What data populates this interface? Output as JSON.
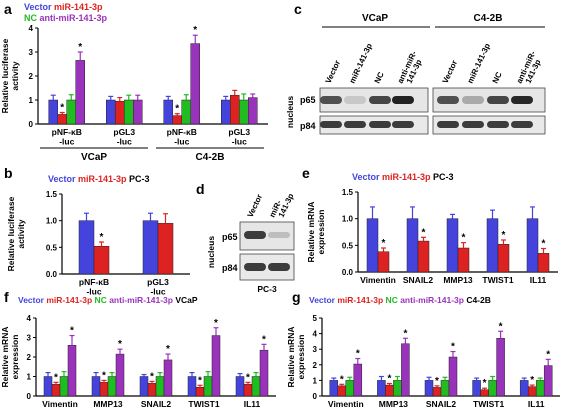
{
  "colors": {
    "vector": "#4444dd",
    "mir": "#dd2222",
    "nc": "#22bb22",
    "anti": "#9933bb",
    "text": "#000000"
  },
  "panels": {
    "a": {
      "letter": "a",
      "legend": [
        "Vector",
        "miR-141-3p",
        "NC",
        "anti-miR-141-3p"
      ],
      "ylabel": [
        "Relative luciferase",
        "activity"
      ],
      "ylim": [
        0,
        4
      ],
      "yticks": [
        "0",
        "1",
        "2",
        "3",
        "4"
      ],
      "groups": [
        {
          "label": [
            "pNF-κB",
            "-luc"
          ],
          "values": [
            1.0,
            0.4,
            1.0,
            2.65
          ],
          "errors": [
            0.2,
            0.08,
            0.22,
            0.35
          ],
          "stars": [
            false,
            true,
            false,
            true
          ]
        },
        {
          "label": [
            "pGL3",
            "-luc"
          ],
          "values": [
            1.0,
            0.95,
            1.0,
            1.0
          ],
          "errors": [
            0.15,
            0.15,
            0.2,
            0.2
          ],
          "stars": [
            false,
            false,
            false,
            false
          ]
        },
        {
          "label": [
            "pNF-κB",
            "-luc"
          ],
          "values": [
            1.0,
            0.35,
            1.0,
            3.35
          ],
          "errors": [
            0.15,
            0.08,
            0.22,
            0.35
          ],
          "stars": [
            false,
            true,
            false,
            true
          ]
        },
        {
          "label": [
            "pGL3",
            "-luc"
          ],
          "values": [
            1.0,
            1.2,
            1.0,
            1.1
          ],
          "errors": [
            0.15,
            0.2,
            0.25,
            0.15
          ],
          "stars": [
            false,
            false,
            false,
            false
          ]
        }
      ],
      "cell_labels": [
        "VCaP",
        "C4-2B"
      ]
    },
    "b": {
      "letter": "b",
      "legend": [
        "Vector",
        "miR-141-3p"
      ],
      "cell_line": "PC-3",
      "ylabel": [
        "Relative luciferase",
        "activity"
      ],
      "ylim": [
        0,
        1.5
      ],
      "yticks": [
        "0.0",
        "0.5",
        "1.0",
        "1.5"
      ],
      "groups": [
        {
          "label": [
            "pNF-κB",
            "-luc"
          ],
          "values": [
            1.0,
            0.52
          ],
          "errors": [
            0.14,
            0.08
          ],
          "stars": [
            false,
            true
          ]
        },
        {
          "label": [
            "pGL3",
            "-luc"
          ],
          "values": [
            1.0,
            0.95
          ],
          "errors": [
            0.14,
            0.18
          ],
          "stars": [
            false,
            false
          ]
        }
      ]
    },
    "c": {
      "letter": "c",
      "cell_lines": [
        "VCaP",
        "C4-2B"
      ],
      "lanes": [
        [
          "Vector"
        ],
        [
          "miR-141-3p"
        ],
        [
          "NC"
        ],
        [
          "anti-miR-",
          "141-3p"
        ]
      ],
      "rows": [
        "p65",
        "p84"
      ],
      "side_label": "nucleus"
    },
    "d": {
      "letter": "d",
      "lanes": [
        [
          "Vector"
        ],
        [
          "miR-",
          "141-3p"
        ]
      ],
      "rows": [
        "p65",
        "p84"
      ],
      "side_label": "nucleus",
      "cell_line": "PC-3"
    },
    "e": {
      "letter": "e",
      "legend": [
        "Vector",
        "miR-141-3p"
      ],
      "cell_line": "PC-3",
      "ylabel": [
        "Relative mRNA",
        "expression"
      ],
      "ylim": [
        0,
        1.5
      ],
      "yticks": [
        "0.0",
        "0.5",
        "1.0",
        "1.5"
      ],
      "groups": [
        {
          "label": "Vimentin",
          "values": [
            1.0,
            0.38
          ],
          "errors": [
            0.22,
            0.07
          ],
          "stars": [
            false,
            true
          ]
        },
        {
          "label": "SNAIL2",
          "values": [
            1.0,
            0.58
          ],
          "errors": [
            0.22,
            0.07
          ],
          "stars": [
            false,
            true
          ]
        },
        {
          "label": "MMP13",
          "values": [
            1.0,
            0.45
          ],
          "errors": [
            0.08,
            0.1
          ],
          "stars": [
            false,
            true
          ]
        },
        {
          "label": "TWIST1",
          "values": [
            1.0,
            0.52
          ],
          "errors": [
            0.16,
            0.08
          ],
          "stars": [
            false,
            true
          ]
        },
        {
          "label": "IL11",
          "values": [
            1.0,
            0.35
          ],
          "errors": [
            0.22,
            0.09
          ],
          "stars": [
            false,
            true
          ]
        }
      ]
    },
    "f": {
      "letter": "f",
      "legend": [
        "Vector",
        "miR-141-3p",
        "NC",
        "anti-miR-141-3p"
      ],
      "cell_line": "VCaP",
      "ylabel": [
        "Relative mRNA",
        "expression"
      ],
      "ylim": [
        0,
        4
      ],
      "yticks": [
        "0",
        "1",
        "2",
        "3",
        "4"
      ],
      "groups": [
        {
          "label": "Vimentin",
          "values": [
            1.0,
            0.6,
            1.0,
            2.6
          ],
          "errors": [
            0.2,
            0.1,
            0.25,
            0.5
          ],
          "stars": [
            false,
            true,
            false,
            true
          ]
        },
        {
          "label": "MMP13",
          "values": [
            1.0,
            0.7,
            1.0,
            2.15
          ],
          "errors": [
            0.2,
            0.1,
            0.2,
            0.25
          ],
          "stars": [
            false,
            true,
            false,
            true
          ]
        },
        {
          "label": "SNAIL2",
          "values": [
            1.0,
            0.65,
            1.0,
            1.85
          ],
          "errors": [
            0.1,
            0.1,
            0.2,
            0.3
          ],
          "stars": [
            false,
            true,
            false,
            true
          ]
        },
        {
          "label": "TWIST1",
          "values": [
            1.0,
            0.45,
            1.0,
            3.1
          ],
          "errors": [
            0.2,
            0.1,
            0.25,
            0.4
          ],
          "stars": [
            false,
            true,
            false,
            true
          ]
        },
        {
          "label": "IL11",
          "values": [
            1.0,
            0.6,
            1.0,
            2.35
          ],
          "errors": [
            0.15,
            0.1,
            0.2,
            0.3
          ],
          "stars": [
            false,
            true,
            false,
            true
          ]
        }
      ]
    },
    "g": {
      "letter": "g",
      "legend": [
        "Vector",
        "miR-141-3p",
        "NC",
        "anti-miR-141-3p"
      ],
      "cell_line": "C4-2B",
      "ylabel": [
        "Relative mRNA",
        "expression"
      ],
      "ylim": [
        0,
        5
      ],
      "yticks": [
        "0",
        "1",
        "2",
        "3",
        "4",
        "5"
      ],
      "groups": [
        {
          "label": "Vimentin",
          "values": [
            1.0,
            0.65,
            1.0,
            2.05
          ],
          "errors": [
            0.15,
            0.1,
            0.2,
            0.35
          ],
          "stars": [
            false,
            true,
            false,
            true
          ]
        },
        {
          "label": "MMP13",
          "values": [
            1.0,
            0.7,
            1.0,
            3.35
          ],
          "errors": [
            0.25,
            0.1,
            0.25,
            0.35
          ],
          "stars": [
            false,
            true,
            false,
            true
          ]
        },
        {
          "label": "SNAIL2",
          "values": [
            1.0,
            0.55,
            1.0,
            2.5
          ],
          "errors": [
            0.2,
            0.1,
            0.2,
            0.35
          ],
          "stars": [
            false,
            true,
            false,
            true
          ]
        },
        {
          "label": "TWIST1",
          "values": [
            1.0,
            0.4,
            1.0,
            3.7
          ],
          "errors": [
            0.15,
            0.1,
            0.25,
            0.45
          ],
          "stars": [
            false,
            true,
            false,
            true
          ]
        },
        {
          "label": "IL11",
          "values": [
            1.0,
            0.6,
            1.0,
            1.95
          ],
          "errors": [
            0.15,
            0.1,
            0.15,
            0.4
          ],
          "stars": [
            false,
            true,
            false,
            true
          ]
        }
      ]
    }
  },
  "chart_data": [
    {
      "panel": "a",
      "type": "bar",
      "ylabel": "Relative luciferase activity",
      "ylim": [
        0,
        4
      ],
      "categories": [
        "VCaP pNF-κB-luc",
        "VCaP pGL3-luc",
        "C4-2B pNF-κB-luc",
        "C4-2B pGL3-luc"
      ],
      "series": [
        {
          "name": "Vector",
          "values": [
            1.0,
            1.0,
            1.0,
            1.0
          ]
        },
        {
          "name": "miR-141-3p",
          "values": [
            0.4,
            0.95,
            0.35,
            1.2
          ]
        },
        {
          "name": "NC",
          "values": [
            1.0,
            1.0,
            1.0,
            1.0
          ]
        },
        {
          "name": "anti-miR-141-3p",
          "values": [
            2.65,
            1.0,
            3.35,
            1.1
          ]
        }
      ]
    },
    {
      "panel": "b",
      "type": "bar",
      "ylabel": "Relative luciferase activity",
      "ylim": [
        0,
        1.5
      ],
      "categories": [
        "pNF-κB-luc",
        "pGL3-luc"
      ],
      "series": [
        {
          "name": "Vector",
          "values": [
            1.0,
            1.0
          ]
        },
        {
          "name": "miR-141-3p",
          "values": [
            0.52,
            0.95
          ]
        }
      ]
    },
    {
      "panel": "e",
      "type": "bar",
      "ylabel": "Relative mRNA expression",
      "ylim": [
        0,
        1.5
      ],
      "categories": [
        "Vimentin",
        "SNAIL2",
        "MMP13",
        "TWIST1",
        "IL11"
      ],
      "series": [
        {
          "name": "Vector",
          "values": [
            1.0,
            1.0,
            1.0,
            1.0,
            1.0
          ]
        },
        {
          "name": "miR-141-3p",
          "values": [
            0.38,
            0.58,
            0.45,
            0.52,
            0.35
          ]
        }
      ]
    },
    {
      "panel": "f",
      "type": "bar",
      "ylabel": "Relative mRNA expression",
      "ylim": [
        0,
        4
      ],
      "categories": [
        "Vimentin",
        "MMP13",
        "SNAIL2",
        "TWIST1",
        "IL11"
      ],
      "series": [
        {
          "name": "Vector",
          "values": [
            1.0,
            1.0,
            1.0,
            1.0,
            1.0
          ]
        },
        {
          "name": "miR-141-3p",
          "values": [
            0.6,
            0.7,
            0.65,
            0.45,
            0.6
          ]
        },
        {
          "name": "NC",
          "values": [
            1.0,
            1.0,
            1.0,
            1.0,
            1.0
          ]
        },
        {
          "name": "anti-miR-141-3p",
          "values": [
            2.6,
            2.15,
            1.85,
            3.1,
            2.35
          ]
        }
      ]
    },
    {
      "panel": "g",
      "type": "bar",
      "ylabel": "Relative mRNA expression",
      "ylim": [
        0,
        5
      ],
      "categories": [
        "Vimentin",
        "MMP13",
        "SNAIL2",
        "TWIST1",
        "IL11"
      ],
      "series": [
        {
          "name": "Vector",
          "values": [
            1.0,
            1.0,
            1.0,
            1.0,
            1.0
          ]
        },
        {
          "name": "miR-141-3p",
          "values": [
            0.65,
            0.7,
            0.55,
            0.4,
            0.6
          ]
        },
        {
          "name": "NC",
          "values": [
            1.0,
            1.0,
            1.0,
            1.0,
            1.0
          ]
        },
        {
          "name": "anti-miR-141-3p",
          "values": [
            2.05,
            3.35,
            2.5,
            3.7,
            1.95
          ]
        }
      ]
    }
  ]
}
